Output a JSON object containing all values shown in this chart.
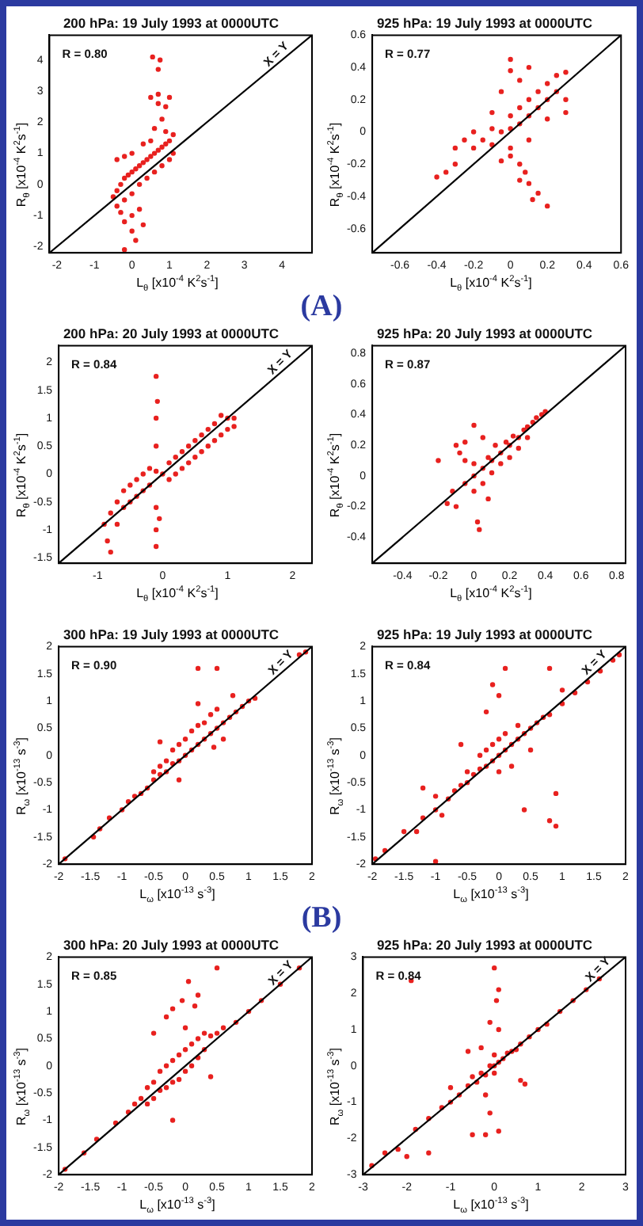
{
  "chart_data": [
    {
      "type": "scatter",
      "title": "200 hPa: 19 July 1993 at 0000UTC",
      "xlabel": "L$_{θ}$ [x10$^{-4}$ K$^{2}$s$^{-1}$]",
      "ylabel": "R$_{θ}$ [x10$^{-4}$ K$^{2}$s$^{-1}$]",
      "xlim": [
        -2.2,
        4.8
      ],
      "ylim": [
        -2.2,
        4.8
      ],
      "xticks": [
        -2,
        -1,
        0,
        1,
        2,
        3,
        4
      ],
      "yticks": [
        -2,
        -1,
        0,
        1,
        2,
        3,
        4
      ],
      "annotations": [
        "R = 0.80",
        "(A)",
        {
          "text": "X = Y",
          "x": 4,
          "y": 4
        }
      ],
      "series": [
        {
          "color": "#e8211f",
          "marker": "circle",
          "x": [
            -0.5,
            -0.4,
            -0.3,
            -0.2,
            -0.1,
            0,
            0.1,
            0.2,
            0.3,
            0.4,
            0.5,
            0.6,
            0.7,
            0.8,
            0.9,
            1,
            1.1,
            1.1,
            1,
            0.8,
            0.6,
            0.4,
            0.2,
            0,
            -0.2,
            -0.4,
            -0.4,
            -0.2,
            0,
            0.3,
            0.2,
            0,
            -0.2,
            0.3,
            0,
            0.1,
            -0.2,
            -0.3,
            0.6,
            0.8,
            0.7,
            0.5,
            0.7,
            0.9,
            1,
            0.55,
            0.75,
            0.7,
            0.5,
            0.9
          ],
          "values": [
            -0.4,
            -0.2,
            0,
            0.2,
            0.3,
            0.4,
            0.5,
            0.6,
            0.7,
            0.8,
            0.9,
            1,
            1.1,
            1.2,
            1.3,
            1.4,
            1.6,
            1,
            0.8,
            0.6,
            0.4,
            0.2,
            0,
            -0.3,
            -0.5,
            -0.7,
            0.8,
            0.9,
            1,
            1.3,
            -0.8,
            -1,
            -1.2,
            -1.3,
            -1.5,
            -1.8,
            -2.1,
            -0.9,
            1.8,
            2.1,
            2.6,
            2.8,
            2.9,
            2.5,
            2.8,
            4.1,
            4,
            3.7,
            1.4,
            1.7
          ]
        },
        {
          "type": "line",
          "marker": "none",
          "color": "#000000",
          "x": [
            -2.2,
            4.8
          ],
          "values": [
            -2.2,
            4.8
          ]
        }
      ]
    },
    {
      "type": "scatter",
      "title": "925 hPa: 19 July 1993 at 0000UTC",
      "xlabel": "L$_{θ}$ [x10$^{-4}$ K$^{2}$s$^{-1}$]",
      "ylabel": "R$_{θ}$ [x10$^{-4}$ K$^{2}$s$^{-1}$]",
      "xlim": [
        -0.75,
        0.6
      ],
      "ylim": [
        -0.75,
        0.6
      ],
      "xticks": [
        -0.6,
        -0.4,
        -0.2,
        0,
        0.2,
        0.4,
        0.6
      ],
      "yticks": [
        -0.6,
        -0.4,
        -0.2,
        0,
        0.2,
        0.4,
        0.6
      ],
      "annotations": [
        "R = 0.77"
      ],
      "series": [
        {
          "color": "#e8211f",
          "marker": "circle",
          "x": [
            -0.4,
            -0.35,
            -0.3,
            -0.3,
            -0.25,
            -0.2,
            -0.2,
            -0.15,
            -0.1,
            -0.1,
            -0.05,
            0,
            0,
            0,
            0.05,
            0.05,
            0.1,
            0.1,
            0.15,
            0.15,
            0.2,
            0.2,
            0.25,
            0.25,
            0.3,
            0.3,
            0.3,
            0.2,
            0.1,
            0,
            0.05,
            -0.05,
            0.08,
            0.1,
            0.15,
            0.12,
            0.2,
            0.05,
            0,
            0,
            0.05,
            0.1,
            -0.05,
            -0.1
          ],
          "values": [
            -0.28,
            -0.25,
            -0.2,
            -0.1,
            -0.05,
            -0.1,
            0,
            -0.05,
            -0.08,
            0.02,
            0,
            0.02,
            0.1,
            -0.1,
            0.05,
            0.15,
            0.1,
            0.2,
            0.15,
            0.25,
            0.2,
            0.3,
            0.25,
            0.35,
            0.37,
            0.2,
            0.12,
            0.08,
            -0.05,
            -0.15,
            -0.2,
            -0.18,
            -0.25,
            -0.32,
            -0.38,
            -0.42,
            -0.46,
            -0.3,
            0.45,
            0.38,
            0.32,
            0.4,
            0.25,
            0.12
          ]
        },
        {
          "type": "line",
          "marker": "none",
          "color": "#000000",
          "x": [
            -0.75,
            0.6
          ],
          "values": [
            -0.75,
            0.6
          ]
        }
      ]
    },
    {
      "type": "scatter",
      "title": "200 hPa: 20 July 1993 at 0000UTC",
      "xlabel": "L$_{θ}$ [x10$^{-4}$ K$^{2}$s$^{-1}$]",
      "ylabel": "R$_{θ}$ [x10$^{-4}$ K$^{2}$s$^{-1}$]",
      "xlim": [
        -1.6,
        2.3
      ],
      "ylim": [
        -1.6,
        2.3
      ],
      "xticks": [
        -1,
        0,
        1,
        2
      ],
      "yticks": [
        -1.5,
        -1,
        -0.5,
        0,
        0.5,
        1,
        1.5,
        2
      ],
      "annotations": [
        "R = 0.84",
        {
          "text": "X = Y",
          "x": 1.9,
          "y": 1.9
        }
      ],
      "series": [
        {
          "color": "#e8211f",
          "marker": "circle",
          "x": [
            -0.9,
            -0.85,
            -0.8,
            -0.8,
            -0.7,
            -0.7,
            -0.6,
            -0.6,
            -0.5,
            -0.5,
            -0.4,
            -0.4,
            -0.3,
            -0.3,
            -0.2,
            -0.2,
            -0.1,
            -0.1,
            -0.1,
            -0.1,
            -0.05,
            -0.1,
            -0.1,
            -0.1,
            -0.08,
            0,
            0.1,
            0.1,
            0.2,
            0.2,
            0.3,
            0.3,
            0.4,
            0.4,
            0.5,
            0.5,
            0.6,
            0.6,
            0.7,
            0.7,
            0.8,
            0.8,
            0.9,
            0.9,
            1,
            1,
            1.1,
            1.1
          ],
          "values": [
            -0.9,
            -1.2,
            -1.4,
            -0.7,
            -0.5,
            -0.9,
            -0.3,
            -0.6,
            -0.2,
            -0.5,
            -0.1,
            -0.4,
            0,
            -0.3,
            0.1,
            -0.2,
            0.05,
            -0.6,
            -1,
            -1.3,
            -0.8,
            0.5,
            1,
            1.75,
            1.3,
            0,
            0.2,
            -0.1,
            0.3,
            0,
            0.4,
            0.1,
            0.5,
            0.2,
            0.6,
            0.3,
            0.7,
            0.4,
            0.8,
            0.5,
            0.9,
            0.6,
            1.05,
            0.7,
            1,
            0.8,
            1,
            0.85
          ]
        },
        {
          "type": "line",
          "marker": "none",
          "color": "#000000",
          "x": [
            -1.6,
            2.3
          ],
          "values": [
            -1.6,
            2.3
          ]
        }
      ]
    },
    {
      "type": "scatter",
      "title": "925 hPa: 20 July 1993 at 0000UTC",
      "xlabel": "L$_{θ}$ [x10$^{-4}$ K$^{2}$s$^{-1}$]",
      "ylabel": "R$_{θ}$ [x10$^{-4}$ K$^{2}$s$^{-1}$]",
      "xlim": [
        -0.57,
        0.85
      ],
      "ylim": [
        -0.57,
        0.85
      ],
      "xticks": [
        -0.4,
        -0.2,
        0,
        0.2,
        0.4,
        0.6,
        0.8
      ],
      "yticks": [
        -0.4,
        -0.2,
        0,
        0.2,
        0.4,
        0.6,
        0.8
      ],
      "annotations": [
        "R = 0.87"
      ],
      "series": [
        {
          "color": "#e8211f",
          "marker": "circle",
          "x": [
            -0.15,
            -0.12,
            -0.1,
            -0.08,
            -0.05,
            -0.05,
            0,
            0,
            0,
            0,
            0.02,
            0.03,
            0.05,
            0.05,
            0.08,
            0.1,
            0.1,
            0.12,
            0.15,
            0.15,
            0.18,
            0.2,
            0.2,
            0.22,
            0.25,
            0.25,
            0.28,
            0.3,
            0.3,
            0.33,
            0.35,
            0.38,
            0.4,
            -0.05,
            0.05,
            0.08,
            -0.1,
            -0.2
          ],
          "values": [
            -0.18,
            -0.1,
            0.2,
            0.15,
            -0.05,
            0.1,
            0,
            0.08,
            -0.1,
            0.33,
            -0.3,
            -0.35,
            0.05,
            -0.05,
            0.12,
            0.1,
            0.02,
            0.2,
            0.15,
            0.08,
            0.22,
            0.2,
            0.12,
            0.26,
            0.25,
            0.18,
            0.3,
            0.32,
            0.25,
            0.35,
            0.38,
            0.4,
            0.42,
            0.22,
            0.25,
            -0.15,
            -0.2,
            0.1
          ]
        },
        {
          "type": "line",
          "marker": "none",
          "color": "#000000",
          "x": [
            -0.57,
            0.85
          ],
          "values": [
            -0.57,
            0.85
          ]
        }
      ]
    },
    {
      "type": "scatter",
      "title": "300 hPa: 19 July 1993 at 0000UTC",
      "xlabel": "L$_{ω}$ [x10$^{-13}$ s$^{-3}$]",
      "ylabel": "R$_{ω}$ [x10$^{-13}$ s$^{-3}$]",
      "xlim": [
        -2,
        2
      ],
      "ylim": [
        -2,
        2
      ],
      "xticks": [
        -2,
        -1.5,
        -1,
        -0.5,
        0,
        0.5,
        1,
        1.5,
        2
      ],
      "yticks": [
        -2,
        -1.5,
        -1,
        -0.5,
        0,
        0.5,
        1,
        1.5,
        2
      ],
      "annotations": [
        "R = 0.90",
        "(B)",
        {
          "text": "X = Y",
          "x": 1.6,
          "y": 1.6
        }
      ],
      "series": [
        {
          "color": "#e8211f",
          "marker": "circle",
          "x": [
            -1.45,
            -1.35,
            -1.2,
            -1,
            -0.9,
            -0.8,
            -0.7,
            -0.6,
            -0.5,
            -0.5,
            -0.4,
            -0.4,
            -0.3,
            -0.3,
            -0.2,
            -0.2,
            -0.1,
            -0.1,
            0,
            0,
            0.1,
            0.1,
            0.2,
            0.2,
            0.3,
            0.3,
            0.4,
            0.4,
            0.5,
            0.5,
            0.6,
            0.7,
            0.8,
            0.9,
            1,
            1.1,
            0.2,
            -0.4,
            0.5,
            0.2,
            0.75,
            -0.1,
            1.8,
            1.9,
            -1.9,
            0.45,
            0.6
          ],
          "values": [
            -1.5,
            -1.35,
            -1.15,
            -1,
            -0.85,
            -0.75,
            -0.7,
            -0.6,
            -0.45,
            -0.3,
            -0.35,
            -0.2,
            -0.3,
            -0.1,
            -0.15,
            0.1,
            -0.1,
            0.2,
            0,
            0.3,
            0.1,
            0.45,
            0.2,
            0.55,
            0.3,
            0.6,
            0.4,
            0.75,
            0.5,
            0.85,
            0.6,
            0.7,
            0.8,
            0.9,
            1,
            1.05,
            0.95,
            0.25,
            1.6,
            1.6,
            1.1,
            -0.45,
            1.85,
            1.9,
            -1.9,
            0.15,
            0.3
          ]
        },
        {
          "type": "line",
          "marker": "none",
          "color": "#000000",
          "x": [
            -2,
            2
          ],
          "values": [
            -2,
            2
          ]
        }
      ]
    },
    {
      "type": "scatter",
      "title": "925 hPa: 19 July 1993 at 0000UTC",
      "xlabel": "L$_{ω}$ [x10$^{-13}$ s$^{-3}$]",
      "ylabel": "R$_{ω}$ [x10$^{-13}$ s$^{-3}$]",
      "xlim": [
        -2,
        2
      ],
      "ylim": [
        -2,
        2
      ],
      "xticks": [
        -2,
        -1.5,
        -1,
        -0.5,
        0,
        0.5,
        1,
        1.5,
        2
      ],
      "yticks": [
        -2,
        -1.5,
        -1,
        -0.5,
        0,
        0.5,
        1,
        1.5,
        2
      ],
      "annotations": [
        "R = 0.84",
        {
          "text": "X = Y",
          "x": 1.6,
          "y": 1.6
        }
      ],
      "series": [
        {
          "color": "#e8211f",
          "marker": "circle",
          "x": [
            -1.95,
            -1.8,
            -1.5,
            -1.2,
            -1,
            -1,
            -0.9,
            -0.8,
            -0.7,
            -0.6,
            -0.5,
            -0.5,
            -0.4,
            -0.3,
            -0.3,
            -0.2,
            -0.2,
            -0.1,
            -0.1,
            0,
            0,
            0,
            0.1,
            0.1,
            0.2,
            0.2,
            0.3,
            0.3,
            0.4,
            0.5,
            0.5,
            0.6,
            0.7,
            0.8,
            1,
            1,
            1.2,
            1.4,
            1.6,
            1.8,
            1.9,
            -0.1,
            0,
            -0.2,
            0.1,
            0.8,
            -0.6,
            -1.2,
            0.9,
            0.8,
            0.9,
            0.4,
            -1,
            -1.3
          ],
          "values": [
            -1.9,
            -1.75,
            -1.4,
            -1.15,
            -1,
            -0.75,
            -1.1,
            -0.8,
            -0.65,
            -0.55,
            -0.5,
            -0.3,
            -0.35,
            -0.25,
            0,
            -0.2,
            0.1,
            -0.1,
            0.2,
            0,
            0.3,
            -0.3,
            0.1,
            0.4,
            0.2,
            -0.2,
            0.3,
            0.55,
            0.4,
            0.5,
            0.1,
            0.6,
            0.7,
            0.75,
            0.95,
            1.2,
            1.15,
            1.35,
            1.55,
            1.75,
            1.85,
            1.3,
            1.1,
            0.8,
            1.6,
            1.6,
            0.2,
            -0.6,
            -0.7,
            -1.2,
            -1.3,
            -1,
            -1.95,
            -1.4
          ]
        },
        {
          "type": "line",
          "marker": "none",
          "color": "#000000",
          "x": [
            -2,
            2
          ],
          "values": [
            -2,
            2
          ]
        }
      ]
    },
    {
      "type": "scatter",
      "title": "300 hPa: 20 July 1993 at 0000UTC",
      "xlabel": "L$_{ω}$ [x10$^{-13}$ s$^{-3}$]",
      "ylabel": "R$_{ω}$ [x10$^{-13}$ s$^{-3}$]",
      "xlim": [
        -2,
        2
      ],
      "ylim": [
        -2,
        2
      ],
      "xticks": [
        -2,
        -1.5,
        -1,
        -0.5,
        0,
        0.5,
        1,
        1.5,
        2
      ],
      "yticks": [
        -2,
        -1.5,
        -1,
        -0.5,
        0,
        0.5,
        1,
        1.5,
        2
      ],
      "annotations": [
        "R = 0.85",
        {
          "text": "X = Y",
          "x": 1.6,
          "y": 1.6
        }
      ],
      "series": [
        {
          "color": "#e8211f",
          "marker": "circle",
          "x": [
            -1.9,
            -1.6,
            -1.4,
            -1.1,
            -0.9,
            -0.8,
            -0.7,
            -0.6,
            -0.6,
            -0.5,
            -0.5,
            -0.4,
            -0.4,
            -0.3,
            -0.3,
            -0.2,
            -0.2,
            -0.1,
            -0.1,
            0,
            0,
            0,
            0.1,
            0.1,
            0.2,
            0.2,
            0.3,
            0.3,
            0.4,
            0.5,
            0.6,
            0.8,
            1,
            1.2,
            1.5,
            1.8,
            -0.3,
            -0.2,
            -0.05,
            0.15,
            0.2,
            0.5,
            0.05,
            -0.5,
            -0.2,
            0.4
          ],
          "values": [
            -1.9,
            -1.6,
            -1.35,
            -1.05,
            -0.85,
            -0.7,
            -0.6,
            -0.4,
            -0.7,
            -0.3,
            -0.6,
            -0.1,
            -0.45,
            0,
            -0.4,
            0.1,
            -0.3,
            0.2,
            -0.25,
            0.3,
            -0.1,
            0.7,
            0.4,
            0,
            0.5,
            0.15,
            0.6,
            0.3,
            0.55,
            0.6,
            0.7,
            0.8,
            1,
            1.2,
            1.5,
            1.8,
            0.9,
            1.05,
            1.2,
            1.1,
            1.3,
            1.8,
            1.55,
            0.6,
            -1,
            -0.2
          ]
        },
        {
          "type": "line",
          "marker": "none",
          "color": "#000000",
          "x": [
            -2,
            2
          ],
          "values": [
            -2,
            2
          ]
        }
      ]
    },
    {
      "type": "scatter",
      "title": "925 hPa: 20 July 1993 at 0000UTC",
      "xlabel": "L$_{ω}$ [x10$^{-13}$ s$^{-3}$]",
      "ylabel": "R$_{ω}$ [x10$^{-13}$ s$^{-3}$]",
      "xlim": [
        -3,
        3
      ],
      "ylim": [
        -3,
        3
      ],
      "xticks": [
        -3,
        -2,
        -1,
        0,
        1,
        2,
        3
      ],
      "yticks": [
        -3,
        -2,
        -1,
        0,
        1,
        2,
        3
      ],
      "annotations": [
        "R = 0.84",
        {
          "text": "X = Y",
          "x": 2.5,
          "y": 2.5
        }
      ],
      "series": [
        {
          "color": "#e8211f",
          "marker": "circle",
          "x": [
            -2.8,
            -2.5,
            -2.2,
            -2,
            -1.8,
            -1.5,
            -1.2,
            -1,
            -0.8,
            -0.6,
            -0.5,
            -0.4,
            -0.3,
            -0.2,
            -0.1,
            0,
            0,
            0,
            0.1,
            0.2,
            0.3,
            0.4,
            0.5,
            0.6,
            0.8,
            1,
            1.2,
            1.5,
            1.8,
            2.1,
            2.4,
            0,
            0.1,
            0.05,
            -0.1,
            0.1,
            -0.3,
            -0.6,
            -1.9,
            -0.2,
            -0.1,
            -0.2,
            0.1,
            -0.5,
            -1.5,
            0.6,
            0.7,
            -1
          ],
          "values": [
            -2.75,
            -2.4,
            -2.3,
            -2.5,
            -1.75,
            -1.45,
            -1.15,
            -1,
            -0.8,
            -0.55,
            -0.3,
            -0.45,
            -0.2,
            -0.25,
            0,
            0,
            0.3,
            -0.2,
            0.1,
            0.2,
            0.35,
            0.4,
            0.45,
            0.6,
            0.8,
            1,
            1.15,
            1.5,
            1.8,
            2.1,
            2.4,
            2.7,
            2.1,
            1.8,
            1.2,
            1,
            0.5,
            0.4,
            2.35,
            -0.8,
            -1.3,
            -1.9,
            -1.8,
            -1.9,
            -2.4,
            -0.4,
            -0.5,
            -0.6
          ]
        },
        {
          "type": "line",
          "marker": "none",
          "color": "#000000",
          "x": [
            -3,
            3
          ],
          "values": [
            -3,
            3
          ]
        }
      ]
    }
  ]
}
